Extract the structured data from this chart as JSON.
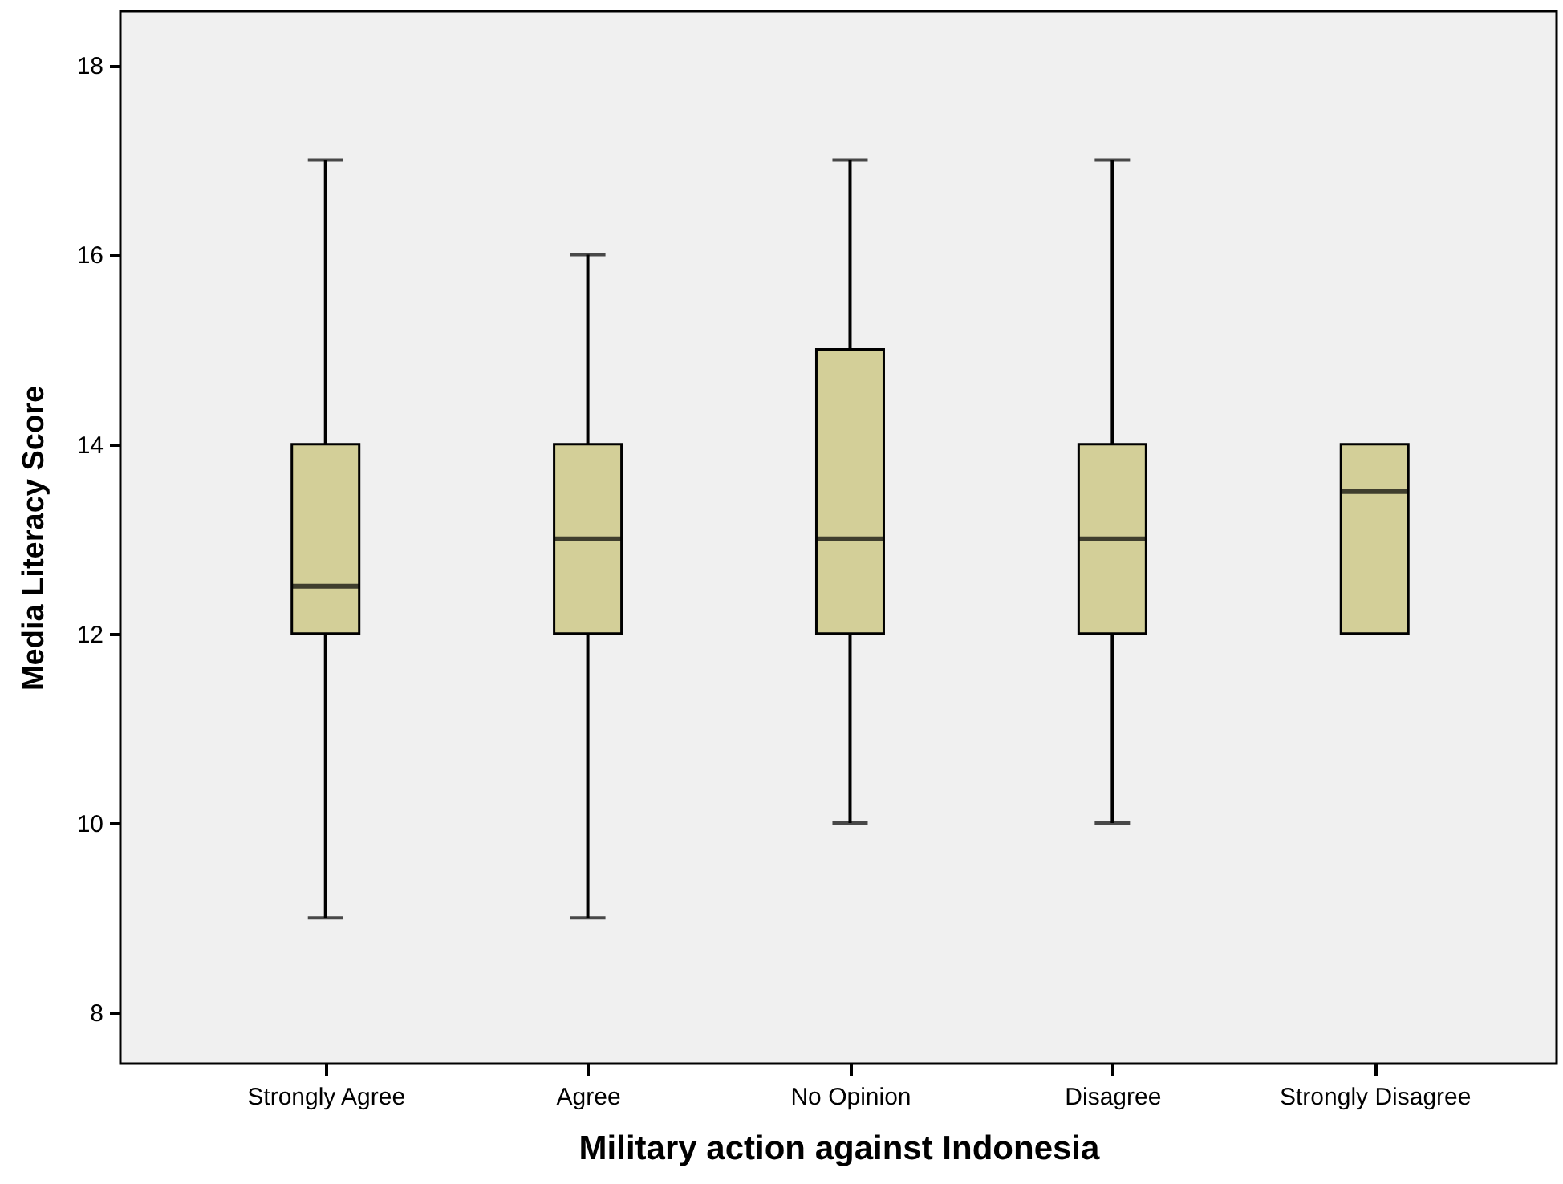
{
  "chart_data": {
    "type": "box",
    "xlabel": "Military action against Indonesia",
    "ylabel": "Media Literacy Score",
    "categories": [
      "Strongly Agree",
      "Agree",
      "No Opinion",
      "Disagree",
      "Strongly Disagree"
    ],
    "boxes": [
      {
        "low": 9,
        "q1": 12,
        "median": 12.5,
        "q3": 14,
        "high": 17
      },
      {
        "low": 9,
        "q1": 12,
        "median": 13,
        "q3": 14,
        "high": 16
      },
      {
        "low": 10,
        "q1": 12,
        "median": 13,
        "q3": 15,
        "high": 17
      },
      {
        "low": 10,
        "q1": 12,
        "median": 13,
        "q3": 14,
        "high": 17
      },
      {
        "low": 12,
        "q1": 12,
        "median": 13.5,
        "q3": 14,
        "high": 14
      }
    ],
    "color": "#d3cf98",
    "ylim": [
      7.46,
      18.57
    ],
    "yticks": [
      8,
      10,
      12,
      14,
      16,
      18
    ]
  }
}
